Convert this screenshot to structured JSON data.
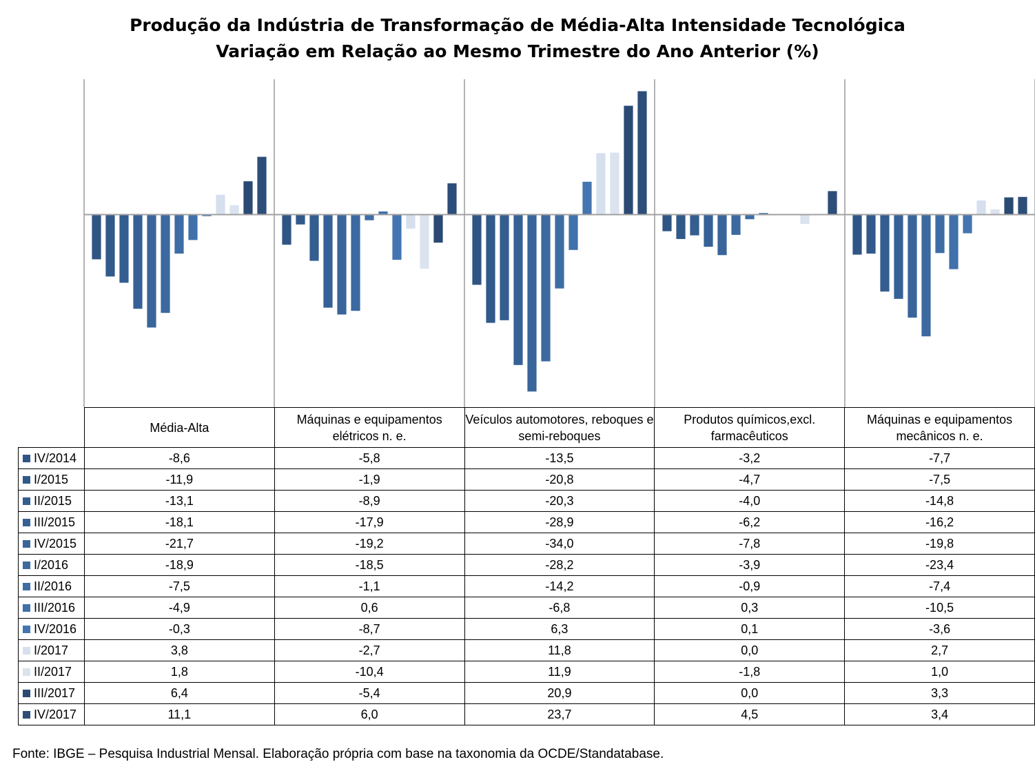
{
  "title": {
    "line1": "Produção da Indústria de Transformação de Média-Alta Intensidade Tecnológica",
    "line2": "Variação em Relação ao Mesmo Trimestre do Ano Anterior (%)"
  },
  "source": "Fonte: IBGE – Pesquisa Industrial Mensal. Elaboração própria com base na taxonomia da OCDE/Standatabase.",
  "chart_data": {
    "type": "bar",
    "grid": false,
    "legend": "table-rows",
    "categories": [
      "Média-Alta",
      "Máquinas e equipamentos elétricos n. e.",
      "Veículos automotores, reboques e semi-reboques",
      "Produtos químicos,excl. farmacêuticos",
      "Máquinas e equipamentos mecânicos  n. e."
    ],
    "series": [
      {
        "name": "IV/2014",
        "color": "#2f5584",
        "values": [
          -8.6,
          -5.8,
          -13.5,
          -3.2,
          -7.7
        ],
        "labels": [
          "-8,6",
          "-5,8",
          "-13,5",
          "-3,2",
          "-7,7"
        ]
      },
      {
        "name": "I/2015",
        "color": "#31598a",
        "values": [
          -11.9,
          -1.9,
          -20.8,
          -4.7,
          -7.5
        ],
        "labels": [
          "-11,9",
          "-1,9",
          "-20,8",
          "-4,7",
          "-7,5"
        ]
      },
      {
        "name": "II/2015",
        "color": "#345d90",
        "values": [
          -13.1,
          -8.9,
          -20.3,
          -4.0,
          -14.8
        ],
        "labels": [
          "-13,1",
          "-8,9",
          "-20,3",
          "-4,0",
          "-14,8"
        ]
      },
      {
        "name": "III/2015",
        "color": "#366196",
        "values": [
          -18.1,
          -17.9,
          -28.9,
          -6.2,
          -16.2
        ],
        "labels": [
          "-18,1",
          "-17,9",
          "-28,9",
          "-6,2",
          "-16,2"
        ]
      },
      {
        "name": "IV/2015",
        "color": "#39659b",
        "values": [
          -21.7,
          -19.2,
          -34.0,
          -7.8,
          -19.8
        ],
        "labels": [
          "-21,7",
          "-19,2",
          "-34,0",
          "-7,8",
          "-19,8"
        ]
      },
      {
        "name": "I/2016",
        "color": "#3b69a0",
        "values": [
          -18.9,
          -18.5,
          -28.2,
          -3.9,
          -23.4
        ],
        "labels": [
          "-18,9",
          "-18,5",
          "-28,2",
          "-3,9",
          "-23,4"
        ]
      },
      {
        "name": "II/2016",
        "color": "#3e6da5",
        "values": [
          -7.5,
          -1.1,
          -14.2,
          -0.9,
          -7.4
        ],
        "labels": [
          "-7,5",
          "-1,1",
          "-14,2",
          "-0,9",
          "-7,4"
        ]
      },
      {
        "name": "III/2016",
        "color": "#4171aa",
        "values": [
          -4.9,
          0.6,
          -6.8,
          0.3,
          -10.5
        ],
        "labels": [
          "-4,9",
          "0,6",
          "-6,8",
          "0,3",
          "-10,5"
        ]
      },
      {
        "name": "IV/2016",
        "color": "#4575b0",
        "values": [
          -0.3,
          -8.7,
          6.3,
          0.1,
          -3.6
        ],
        "labels": [
          "-0,3",
          "-8,7",
          "6,3",
          "0,1",
          "-3,6"
        ]
      },
      {
        "name": "I/2017",
        "color": "#d6dfee",
        "values": [
          3.8,
          -2.7,
          11.8,
          0.0,
          2.7
        ],
        "labels": [
          "3,8",
          "-2,7",
          "11,8",
          "0,0",
          "2,7"
        ]
      },
      {
        "name": "II/2017",
        "color": "#dbe3ef",
        "values": [
          1.8,
          -10.4,
          11.9,
          -1.8,
          1.0
        ],
        "labels": [
          "1,8",
          "-10,4",
          "11,9",
          "-1,8",
          "1,0"
        ]
      },
      {
        "name": "III/2017",
        "color": "#2a4a74",
        "values": [
          6.4,
          -5.4,
          20.9,
          0.0,
          3.3
        ],
        "labels": [
          "6,4",
          "-5,4",
          "20,9",
          "0,0",
          "3,3"
        ]
      },
      {
        "name": "IV/2017",
        "color": "#2d4e79",
        "values": [
          11.1,
          6.0,
          23.7,
          4.5,
          3.4
        ],
        "labels": [
          "11,1",
          "6,0",
          "23,7",
          "4,5",
          "3,4"
        ]
      }
    ],
    "ylim": [
      -37,
      26
    ]
  }
}
